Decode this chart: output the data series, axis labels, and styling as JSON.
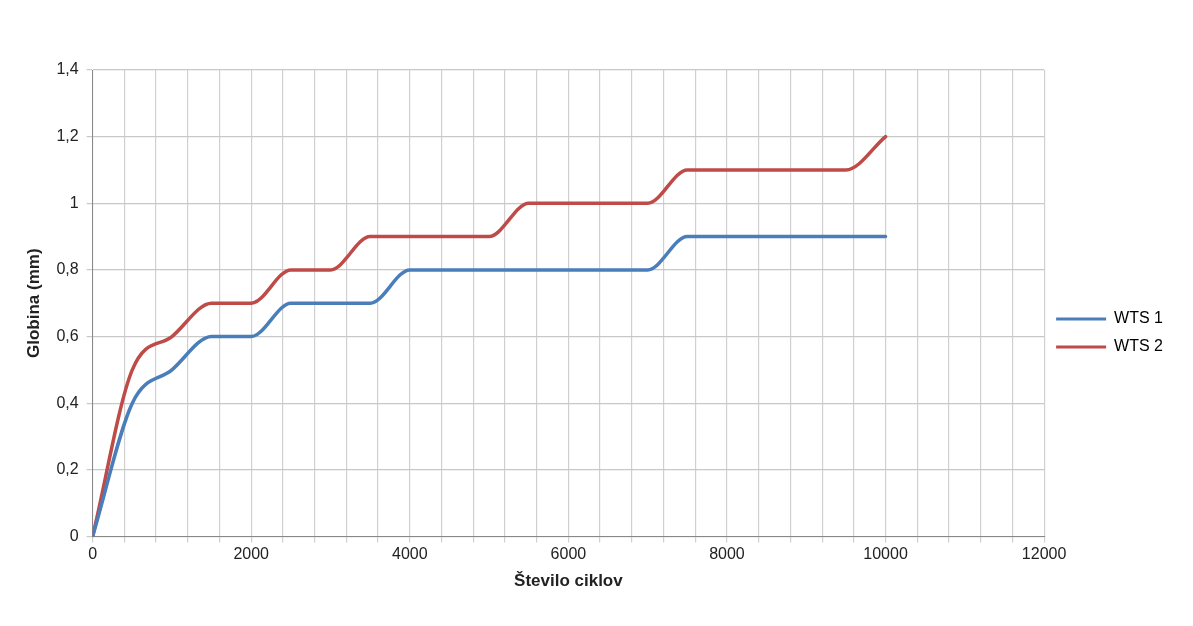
{
  "chart_data": {
    "type": "line",
    "xlabel": "Število ciklov",
    "ylabel": "Globina (mm)",
    "x": [
      0,
      500,
      1000,
      1500,
      2000,
      2500,
      3000,
      3500,
      4000,
      4500,
      5000,
      5500,
      6000,
      6500,
      7000,
      7500,
      8000,
      8500,
      9000,
      9500,
      10000
    ],
    "series": [
      {
        "name": "WTS 1",
        "color": "#4a7ebb",
        "values": [
          0,
          0.4,
          0.5,
          0.6,
          0.6,
          0.7,
          0.7,
          0.7,
          0.8,
          0.8,
          0.8,
          0.8,
          0.8,
          0.8,
          0.8,
          0.9,
          0.9,
          0.9,
          0.9,
          0.9,
          0.9
        ]
      },
      {
        "name": "WTS 2",
        "color": "#be4b48",
        "values": [
          0,
          0.5,
          0.6,
          0.7,
          0.7,
          0.8,
          0.8,
          0.9,
          0.9,
          0.9,
          0.9,
          1.0,
          1.0,
          1.0,
          1.0,
          1.1,
          1.1,
          1.1,
          1.1,
          1.1,
          1.2
        ]
      }
    ],
    "xlim": [
      0,
      12000
    ],
    "xticks": [
      0,
      {
        "value": 400,
        "label": null
      },
      {
        "value": 800,
        "label": null
      },
      {
        "value": 1200,
        "label": null
      },
      {
        "value": 1600,
        "label": null
      },
      2000,
      {
        "value": 2400,
        "label": null
      },
      {
        "value": 2800,
        "label": null
      },
      {
        "value": 3200,
        "label": null
      },
      {
        "value": 3600,
        "label": null
      },
      4000,
      {
        "value": 4400,
        "label": null
      },
      {
        "value": 4800,
        "label": null
      },
      {
        "value": 5200,
        "label": null
      },
      {
        "value": 5600,
        "label": null
      },
      6000,
      {
        "value": 6400,
        "label": null
      },
      {
        "value": 6800,
        "label": null
      },
      {
        "value": 7200,
        "label": null
      },
      {
        "value": 7600,
        "label": null
      },
      8000,
      {
        "value": 8400,
        "label": null
      },
      {
        "value": 8800,
        "label": null
      },
      {
        "value": 9200,
        "label": null
      },
      {
        "value": 9600,
        "label": null
      },
      10000,
      {
        "value": 10400,
        "label": null
      },
      {
        "value": 10800,
        "label": null
      },
      {
        "value": 11200,
        "label": null
      },
      {
        "value": 11600,
        "label": null
      },
      12000
    ],
    "ylim": [
      0,
      1.4
    ],
    "yticks": [
      {
        "value": 0,
        "label": "0"
      },
      {
        "value": 0.2,
        "label": "0,2"
      },
      {
        "value": 0.4,
        "label": "0,4"
      },
      {
        "value": 0.6,
        "label": "0,6"
      },
      {
        "value": 0.8,
        "label": "0,8"
      },
      {
        "value": 1,
        "label": "1"
      },
      {
        "value": 1.2,
        "label": "1,2"
      },
      {
        "value": 1.4,
        "label": "1,4"
      }
    ],
    "grid": true,
    "legend": "right",
    "marker": "none",
    "line_style": "solid"
  }
}
